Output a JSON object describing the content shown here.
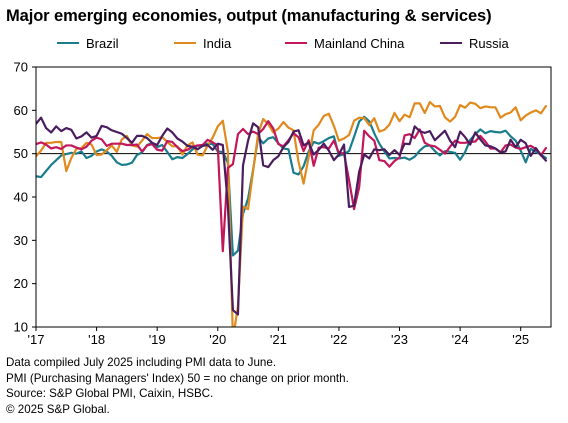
{
  "chart_data": {
    "type": "line",
    "title": "Major emerging economies, output (manufacturing & services)",
    "xlabel": "",
    "ylabel": "",
    "ylim": [
      10,
      70
    ],
    "yticks": [
      10,
      20,
      30,
      40,
      50,
      60,
      70
    ],
    "xlim": [
      2017.0,
      2025.5
    ],
    "xticks": [
      {
        "label": "'17",
        "value": 2017.0
      },
      {
        "label": "'18",
        "value": 2018.0
      },
      {
        "label": "'19",
        "value": 2019.0
      },
      {
        "label": "'20",
        "value": 2020.0
      },
      {
        "label": "'21",
        "value": 2021.0
      },
      {
        "label": "'22",
        "value": 2022.0
      },
      {
        "label": "'23",
        "value": 2023.0
      },
      {
        "label": "'24",
        "value": 2024.0
      },
      {
        "label": "'25",
        "value": 2025.0
      }
    ],
    "reference_line": 50,
    "grid": false,
    "legend": "top",
    "series": [
      {
        "name": "Brazil",
        "color": "#1a7d8e",
        "values": [
          44.8,
          44.6,
          46.0,
          47.4,
          48.5,
          49.6,
          49.9,
          50.2,
          50.0,
          50.5,
          49.0,
          49.5,
          50.5,
          51.0,
          50.5,
          49.5,
          48.0,
          47.4,
          47.5,
          47.9,
          49.7,
          50.3,
          52.0,
          52.5,
          51.5,
          52.0,
          50.4,
          48.7,
          49.2,
          49.0,
          49.9,
          51.0,
          51.8,
          52.0,
          52.3,
          52.2,
          50.5,
          50.4,
          47.9,
          26.5,
          27.6,
          36.1,
          39.6,
          46.3,
          53.8,
          52.4,
          53.5,
          53.8,
          52.4,
          51.2,
          51.0,
          45.6,
          45.2,
          47.1,
          50.5,
          52.7,
          52.3,
          52.9,
          53.6,
          54.0,
          49.5,
          49.9,
          50.6,
          53.9,
          57.4,
          58.5,
          57.5,
          54.7,
          52.3,
          50.5,
          48.9,
          49.0,
          48.9,
          49.1,
          48.6,
          49.3,
          50.7,
          51.7,
          51.9,
          50.6,
          49.6,
          50.6,
          50.4,
          50.2,
          48.6,
          50.4,
          53.2,
          54.5,
          55.6,
          54.7,
          55.2,
          55.0,
          54.9,
          55.3,
          54.0,
          53.0,
          50.7,
          48.0,
          51.1,
          50.4,
          49.8,
          49.0
        ]
      },
      {
        "name": "India",
        "color": "#e08a1e",
        "values": [
          49.4,
          50.7,
          52.5,
          52.5,
          52.7,
          52.7,
          46.0,
          49.0,
          51.1,
          51.3,
          52.5,
          52.1,
          49.7,
          49.8,
          50.8,
          51.9,
          50.4,
          53.3,
          54.1,
          51.9,
          51.6,
          53.0,
          54.5,
          53.6,
          53.6,
          53.8,
          52.7,
          51.7,
          51.7,
          49.8,
          51.9,
          52.6,
          49.8,
          49.6,
          51.9,
          53.7,
          56.3,
          57.6,
          50.6,
          7.2,
          14.8,
          37.8,
          37.2,
          46.0,
          54.6,
          58.0,
          56.8,
          54.9,
          55.8,
          57.3,
          56.0,
          55.4,
          48.1,
          43.1,
          49.2,
          55.4,
          56.7,
          58.7,
          59.2,
          56.4,
          53.0,
          53.5,
          54.3,
          57.6,
          58.3,
          58.2,
          56.6,
          58.2,
          55.1,
          55.5,
          56.7,
          59.4,
          57.5,
          59.0,
          58.4,
          61.6,
          61.6,
          59.4,
          61.9,
          60.9,
          61.0,
          58.4,
          57.4,
          58.5,
          61.2,
          60.6,
          61.8,
          61.5,
          60.5,
          60.9,
          60.7,
          60.7,
          58.3,
          59.1,
          59.5,
          60.7,
          57.7,
          58.8,
          59.5,
          60.0,
          59.3,
          61.0
        ]
      },
      {
        "name": "Mainland China",
        "color": "#c2185b",
        "values": [
          52.2,
          52.6,
          52.1,
          51.2,
          51.5,
          51.1,
          51.9,
          51.9,
          51.4,
          51.0,
          51.6,
          53.0,
          53.7,
          53.3,
          51.8,
          52.3,
          52.3,
          52.3,
          52.0,
          52.0,
          52.1,
          50.5,
          51.9,
          52.2,
          50.9,
          50.7,
          52.9,
          52.7,
          51.5,
          50.6,
          50.9,
          51.6,
          51.9,
          52.0,
          53.2,
          52.6,
          51.9,
          27.5,
          46.7,
          47.6,
          54.5,
          55.7,
          54.5,
          55.1,
          54.5,
          55.7,
          57.5,
          55.8,
          52.2,
          51.7,
          53.1,
          54.7,
          53.8,
          50.6,
          53.1,
          47.2,
          51.4,
          51.5,
          51.2,
          53.0,
          50.1,
          50.1,
          43.9,
          37.2,
          42.2,
          55.3,
          54.0,
          53.0,
          48.5,
          48.3,
          47.0,
          48.3,
          49.1,
          54.2,
          54.5,
          53.6,
          55.6,
          52.5,
          51.9,
          51.7,
          50.9,
          50.0,
          51.6,
          53.0,
          52.5,
          52.5,
          52.7,
          52.8,
          54.1,
          52.8,
          51.2,
          51.2,
          50.3,
          51.9,
          52.1,
          51.4,
          51.1,
          51.5,
          51.8,
          51.1,
          49.6,
          51.3
        ]
      },
      {
        "name": "Russia",
        "color": "#4a1d5e",
        "values": [
          56.9,
          58.3,
          55.9,
          54.9,
          56.3,
          55.2,
          55.9,
          55.5,
          53.5,
          54.0,
          54.9,
          53.7,
          54.1,
          56.4,
          56.1,
          55.4,
          55.0,
          54.6,
          53.6,
          52.5,
          54.1,
          54.1,
          53.6,
          52.5,
          52.0,
          54.1,
          55.8,
          54.9,
          53.5,
          52.8,
          51.8,
          51.6,
          51.0,
          51.8,
          52.0,
          50.9,
          52.3,
          52.0,
          38.2,
          13.9,
          12.9,
          47.3,
          53.0,
          57.0,
          56.1,
          47.3,
          46.9,
          48.5,
          49.4,
          51.5,
          52.7,
          55.1,
          55.4,
          51.9,
          52.6,
          49.8,
          50.9,
          52.3,
          50.7,
          48.5,
          49.8,
          52.1,
          37.7,
          38.0,
          45.8,
          49.8,
          48.9,
          51.0,
          50.8,
          51.0,
          49.7,
          50.8,
          49.7,
          52.3,
          52.2,
          56.3,
          55.2,
          54.8,
          55.2,
          53.1,
          54.2,
          55.3,
          53.0,
          51.5,
          55.1,
          53.8,
          52.1,
          54.9,
          53.3,
          51.9,
          51.7,
          51.2,
          50.3,
          50.5,
          53.2,
          51.5,
          53.2,
          52.4,
          49.5,
          51.3,
          49.7,
          48.4
        ]
      }
    ]
  },
  "footnotes": [
    "Data compiled July 2025 including PMI data to June.",
    "PMI (Purchasing Managers' Index) 50 = no change on prior month.",
    "Source: S&P Global PMI, Caixin, HSBC.",
    "© 2025 S&P Global."
  ]
}
